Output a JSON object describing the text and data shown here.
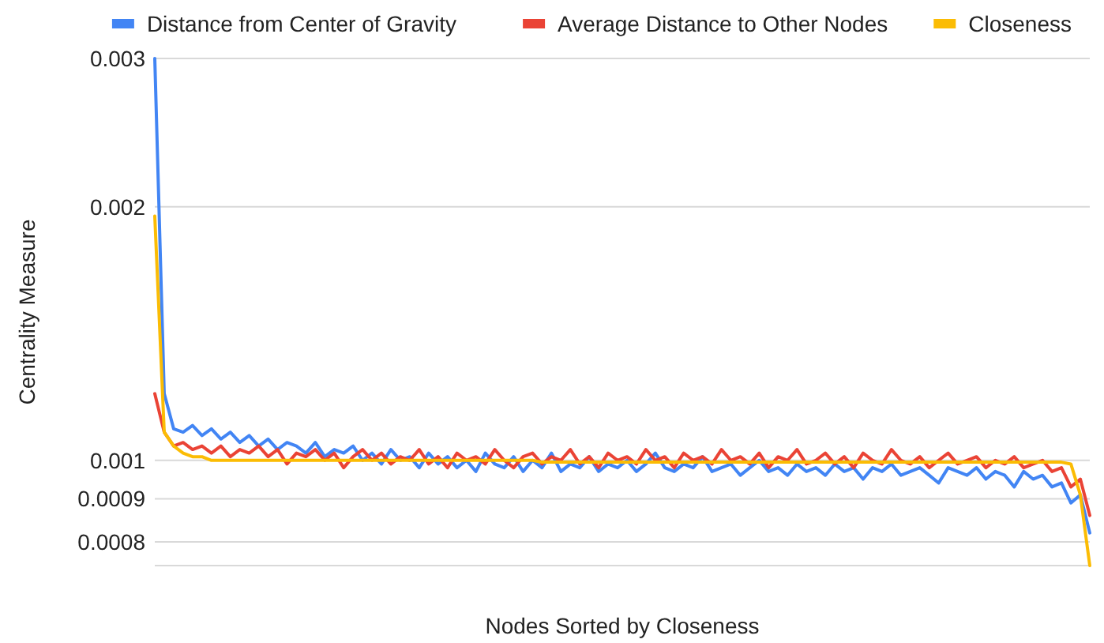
{
  "chart_data": {
    "type": "line",
    "xlabel": "Nodes Sorted by Closeness",
    "ylabel": "Centrality Measure",
    "log": true,
    "grid": "y",
    "legend": "top",
    "tick_labels": "y",
    "marker": "none",
    "line_style": "solid",
    "ylim": [
      0.00075,
      0.003
    ],
    "yticks": [
      0.0008,
      0.0009,
      0.001,
      0.002,
      0.003
    ],
    "categories": [
      null,
      null,
      null,
      null,
      null,
      null,
      null,
      null,
      null,
      null,
      null,
      null,
      null,
      null,
      null,
      null,
      null,
      null,
      null,
      null,
      null,
      null,
      null,
      null,
      null,
      null,
      null,
      null,
      null,
      null,
      null,
      null,
      null,
      null,
      null,
      null,
      null,
      null,
      null,
      null,
      null,
      null,
      null,
      null,
      null,
      null,
      null,
      null,
      null,
      null,
      null,
      null,
      null,
      null,
      null,
      null,
      null,
      null,
      null,
      null,
      null,
      null,
      null,
      null,
      null,
      null,
      null,
      null,
      null,
      null,
      null,
      null,
      null,
      null,
      null,
      null,
      null,
      null,
      null,
      null,
      null,
      null,
      null,
      null,
      null,
      null,
      null,
      null,
      null,
      null,
      null,
      null,
      null,
      null,
      null,
      null,
      null,
      null,
      null,
      null
    ],
    "series": [
      {
        "name": "Distance from Center of Gravity",
        "color": "#4285f4",
        "values": [
          0.003,
          0.0012,
          0.00109,
          0.00108,
          0.0011,
          0.00107,
          0.00109,
          0.00106,
          0.00108,
          0.00105,
          0.00107,
          0.00104,
          0.00106,
          0.00103,
          0.00105,
          0.00104,
          0.00102,
          0.00105,
          0.00101,
          0.00103,
          0.00102,
          0.00104,
          0.001,
          0.00102,
          0.00099,
          0.00103,
          0.001,
          0.00101,
          0.00098,
          0.00102,
          0.00099,
          0.00101,
          0.00098,
          0.001,
          0.00097,
          0.00102,
          0.00099,
          0.00098,
          0.00101,
          0.00097,
          0.001,
          0.00098,
          0.00102,
          0.00097,
          0.00099,
          0.00098,
          0.00101,
          0.00097,
          0.00099,
          0.00098,
          0.001,
          0.00097,
          0.00099,
          0.00102,
          0.00098,
          0.00097,
          0.00099,
          0.00098,
          0.00101,
          0.00097,
          0.00098,
          0.00099,
          0.00096,
          0.00098,
          0.001,
          0.00097,
          0.00098,
          0.00096,
          0.00099,
          0.00097,
          0.00098,
          0.00096,
          0.00099,
          0.00097,
          0.00098,
          0.00095,
          0.00098,
          0.00097,
          0.00099,
          0.00096,
          0.00097,
          0.00098,
          0.00096,
          0.00094,
          0.00098,
          0.00097,
          0.00096,
          0.00098,
          0.00095,
          0.00097,
          0.00096,
          0.00093,
          0.00097,
          0.00095,
          0.00096,
          0.00093,
          0.00094,
          0.00089,
          0.00091,
          0.00082
        ]
      },
      {
        "name": "Average Distance to Other Nodes",
        "color": "#ea4335",
        "values": [
          0.0012,
          0.00108,
          0.00104,
          0.00105,
          0.00103,
          0.00104,
          0.00102,
          0.00104,
          0.00101,
          0.00103,
          0.00102,
          0.00104,
          0.00101,
          0.00103,
          0.00099,
          0.00102,
          0.00101,
          0.00103,
          0.001,
          0.00102,
          0.00098,
          0.00101,
          0.00103,
          0.001,
          0.00102,
          0.00099,
          0.00101,
          0.001,
          0.00103,
          0.00099,
          0.00101,
          0.00098,
          0.00102,
          0.001,
          0.00101,
          0.00099,
          0.00103,
          0.001,
          0.00098,
          0.00101,
          0.00102,
          0.00099,
          0.00101,
          0.001,
          0.00103,
          0.00099,
          0.00101,
          0.00098,
          0.00102,
          0.001,
          0.00101,
          0.00099,
          0.00103,
          0.001,
          0.00101,
          0.00098,
          0.00102,
          0.001,
          0.00101,
          0.00099,
          0.00103,
          0.001,
          0.00101,
          0.00099,
          0.00102,
          0.00098,
          0.00101,
          0.001,
          0.00103,
          0.00099,
          0.001,
          0.00102,
          0.00099,
          0.00101,
          0.00098,
          0.00102,
          0.001,
          0.00099,
          0.00103,
          0.001,
          0.00099,
          0.00101,
          0.00098,
          0.001,
          0.00102,
          0.00099,
          0.001,
          0.00101,
          0.00098,
          0.001,
          0.00099,
          0.00101,
          0.00098,
          0.00099,
          0.001,
          0.00097,
          0.00098,
          0.00093,
          0.00095,
          0.00086
        ]
      },
      {
        "name": "Closeness",
        "color": "#fbbc04",
        "values": [
          0.00195,
          0.00108,
          0.00104,
          0.00102,
          0.00101,
          0.00101,
          0.001,
          0.001,
          0.001,
          0.001,
          0.001,
          0.001,
          0.001,
          0.001,
          0.001,
          0.001,
          0.001,
          0.001,
          0.001,
          0.001,
          0.001,
          0.001,
          0.001,
          0.001,
          0.001,
          0.001,
          0.001,
          0.001,
          0.001,
          0.001,
          0.001,
          0.001,
          0.001,
          0.001,
          0.001,
          0.001,
          0.001,
          0.001,
          0.001,
          0.001,
          0.001,
          0.000995,
          0.000995,
          0.000995,
          0.000995,
          0.000995,
          0.000995,
          0.000995,
          0.000995,
          0.000995,
          0.000995,
          0.000995,
          0.000995,
          0.000995,
          0.000995,
          0.000995,
          0.000995,
          0.000995,
          0.000995,
          0.000995,
          0.000995,
          0.000995,
          0.000995,
          0.000995,
          0.000995,
          0.000995,
          0.000995,
          0.000995,
          0.000995,
          0.000995,
          0.000995,
          0.000995,
          0.000995,
          0.000995,
          0.000995,
          0.000995,
          0.000995,
          0.000995,
          0.000995,
          0.000995,
          0.000995,
          0.000995,
          0.000995,
          0.000995,
          0.000995,
          0.000995,
          0.000995,
          0.000995,
          0.000995,
          0.000995,
          0.000995,
          0.000995,
          0.000995,
          0.000995,
          0.000995,
          0.000995,
          0.000995,
          0.00099,
          0.00091,
          0.00075
        ]
      }
    ]
  }
}
